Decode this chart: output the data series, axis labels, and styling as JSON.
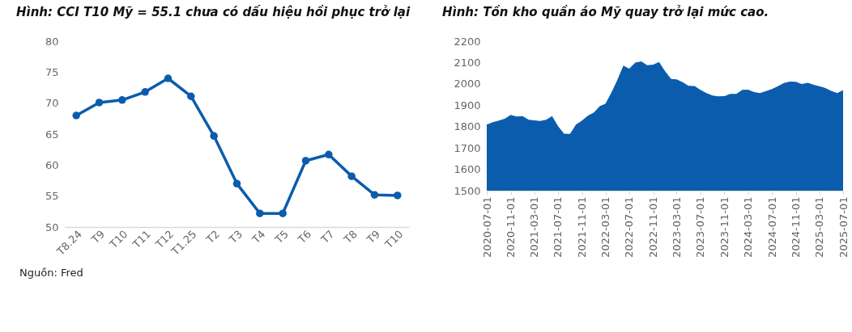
{
  "chart_data": [
    {
      "type": "line",
      "title": "Hình: CCI T10 Mỹ = 55.1 chưa có dấu hiệu hồi phục trở lại",
      "categories": [
        "T8.24",
        "T9",
        "T10",
        "T11",
        "T12",
        "T1.25",
        "T2",
        "T3",
        "T4",
        "T5",
        "T6",
        "T7",
        "T8",
        "T9",
        "T10"
      ],
      "series": [
        {
          "color": "#0b5cad",
          "values": [
            68.0,
            70.1,
            70.5,
            71.8,
            74.0,
            71.1,
            64.7,
            57.0,
            52.2,
            52.2,
            60.7,
            61.7,
            58.2,
            55.2,
            55.1
          ]
        }
      ],
      "ylim": [
        50,
        80
      ],
      "yticks": [
        50,
        55,
        60,
        65,
        70,
        75,
        80
      ],
      "grid": false,
      "marker": "circle",
      "line_style": "solid",
      "annotations": [
        "Nguồn: Fred"
      ]
    },
    {
      "type": "area",
      "title": "Hình: Tồn kho quần áo Mỹ quay trở lại mức cao.",
      "x": [
        "2020-07",
        "2020-08",
        "2020-09",
        "2020-10",
        "2020-11",
        "2020-12",
        "2021-01",
        "2021-02",
        "2021-03",
        "2021-04",
        "2021-05",
        "2021-06",
        "2021-07",
        "2021-08",
        "2021-09",
        "2021-10",
        "2021-11",
        "2021-12",
        "2022-01",
        "2022-02",
        "2022-03",
        "2022-04",
        "2022-05",
        "2022-06",
        "2022-07",
        "2022-08",
        "2022-09",
        "2022-10",
        "2022-11",
        "2022-12",
        "2023-01",
        "2023-02",
        "2023-03",
        "2023-04",
        "2023-05",
        "2023-06",
        "2023-07",
        "2023-08",
        "2023-09",
        "2023-10",
        "2023-11",
        "2023-12",
        "2024-01",
        "2024-02",
        "2024-03",
        "2024-04",
        "2024-05",
        "2024-06",
        "2024-07",
        "2024-08",
        "2024-09",
        "2024-10",
        "2024-11",
        "2024-12",
        "2025-01",
        "2025-02",
        "2025-03",
        "2025-04",
        "2025-05",
        "2025-06",
        "2025-07"
      ],
      "series": [
        {
          "color": "#0b5cad",
          "values": [
            1809,
            1821,
            1828,
            1837,
            1855,
            1847,
            1849,
            1832,
            1829,
            1826,
            1832,
            1849,
            1803,
            1767,
            1766,
            1809,
            1828,
            1851,
            1866,
            1896,
            1907,
            1960,
            2018,
            2086,
            2071,
            2100,
            2105,
            2087,
            2090,
            2103,
            2059,
            2023,
            2021,
            2008,
            1991,
            1990,
            1972,
            1957,
            1946,
            1942,
            1943,
            1953,
            1953,
            1972,
            1973,
            1962,
            1957,
            1966,
            1976,
            1989,
            2004,
            2011,
            2010,
            1999,
            2005,
            1996,
            1989,
            1981,
            1967,
            1957,
            1971
          ]
        }
      ],
      "xlim": [
        "2020-07-01",
        "2025-07-01"
      ],
      "xticks": [
        "2020-07-01",
        "2020-11-01",
        "2021-03-01",
        "2021-07-01",
        "2021-11-01",
        "2022-03-01",
        "2022-07-01",
        "2022-11-01",
        "2023-03-01",
        "2023-07-01",
        "2023-11-01",
        "2024-03-01",
        "2024-07-01",
        "2024-11-01",
        "2025-03-01",
        "2025-07-01"
      ],
      "ylim": [
        1500,
        2200
      ],
      "yticks": [
        1500,
        1600,
        1700,
        1800,
        1900,
        2000,
        2100,
        2200
      ],
      "grid": false
    }
  ]
}
